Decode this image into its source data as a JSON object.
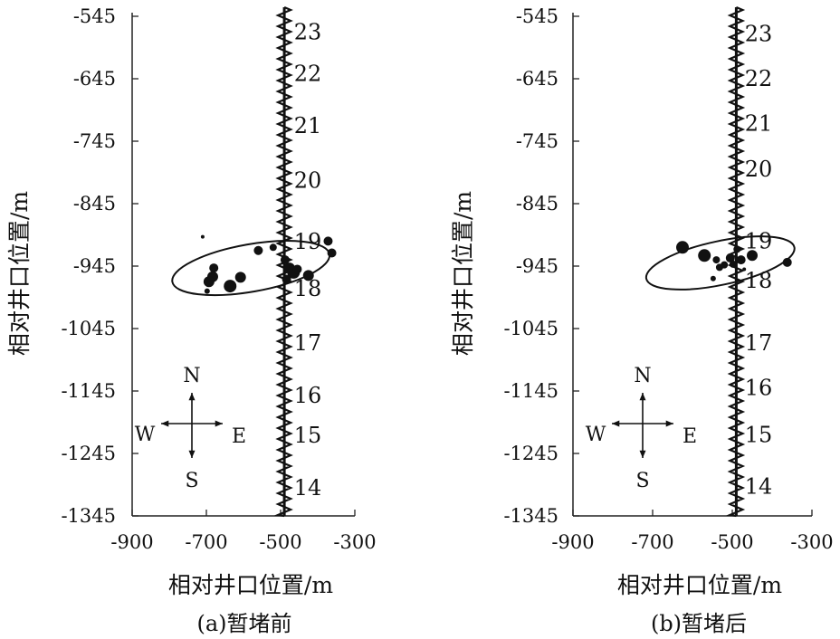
{
  "chart_data": [
    {
      "type": "scatter",
      "caption": "(a)暂堵前",
      "xlabel": "相对井口位置/m",
      "ylabel": "相对井口位置/m",
      "xlim": [
        -900,
        -300
      ],
      "ylim": [
        -1345,
        -545
      ],
      "xticks": [
        -900,
        -700,
        -500,
        -300
      ],
      "yticks": [
        -545,
        -645,
        -745,
        -845,
        -945,
        -1045,
        -1145,
        -1245,
        -1345
      ],
      "well_x": -490,
      "stage_labels": [
        "23",
        "22",
        "21",
        "20",
        "19",
        "18",
        "17",
        "16",
        "15",
        "14"
      ],
      "stage_y": [
        -570,
        -637,
        -720,
        -808,
        -906,
        -981,
        -1068,
        -1152,
        -1216,
        -1300
      ],
      "compass": {
        "n": "N",
        "s": "S",
        "w": "W",
        "e": "E"
      },
      "ellipse": {
        "cx": -580,
        "cy": -948,
        "rx": 215,
        "ry": 38,
        "angle_deg": -10
      },
      "points": [
        {
          "x": -710,
          "y": -898,
          "s": 2
        },
        {
          "x": -680,
          "y": -948,
          "s": 5
        },
        {
          "x": -683,
          "y": -962,
          "s": 6
        },
        {
          "x": -693,
          "y": -970,
          "s": 6
        },
        {
          "x": -698,
          "y": -985,
          "s": 3
        },
        {
          "x": -636,
          "y": -977,
          "s": 7
        },
        {
          "x": -608,
          "y": -963,
          "s": 6
        },
        {
          "x": -560,
          "y": -920,
          "s": 5
        },
        {
          "x": -520,
          "y": -915,
          "s": 4
        },
        {
          "x": -488,
          "y": -935,
          "s": 5
        },
        {
          "x": -476,
          "y": -948,
          "s": 6
        },
        {
          "x": -465,
          "y": -955,
          "s": 7
        },
        {
          "x": -455,
          "y": -950,
          "s": 5
        },
        {
          "x": -484,
          "y": -966,
          "s": 5
        },
        {
          "x": -425,
          "y": -960,
          "s": 6
        },
        {
          "x": -372,
          "y": -905,
          "s": 5
        },
        {
          "x": -362,
          "y": -924,
          "s": 5
        }
      ]
    },
    {
      "type": "scatter",
      "caption": "(b)暂堵后",
      "xlabel": "相对井口位置/m",
      "ylabel": "相对井口位置/m",
      "xlim": [
        -900,
        -300
      ],
      "ylim": [
        -1345,
        -545
      ],
      "xticks": [
        -900,
        -700,
        -500,
        -300
      ],
      "yticks": [
        -545,
        -645,
        -745,
        -845,
        -945,
        -1045,
        -1145,
        -1245,
        -1345
      ],
      "well_x": -490,
      "stage_labels": [
        "23",
        "22",
        "21",
        "20",
        "19",
        "18",
        "17",
        "16",
        "15",
        "14"
      ],
      "stage_y": [
        -573,
        -645,
        -717,
        -790,
        -905,
        -968,
        -1068,
        -1140,
        -1215,
        -1298
      ],
      "compass": {
        "n": "N",
        "s": "S",
        "w": "W",
        "e": "E"
      },
      "ellipse": {
        "cx": -530,
        "cy": -940,
        "rx": 190,
        "ry": 35,
        "angle_deg": -12
      },
      "points": [
        {
          "x": -625,
          "y": -915,
          "s": 7
        },
        {
          "x": -570,
          "y": -928,
          "s": 7
        },
        {
          "x": -540,
          "y": -935,
          "s": 4
        },
        {
          "x": -532,
          "y": -947,
          "s": 4
        },
        {
          "x": -520,
          "y": -943,
          "s": 4
        },
        {
          "x": -548,
          "y": -965,
          "s": 3
        },
        {
          "x": -505,
          "y": -932,
          "s": 5
        },
        {
          "x": -498,
          "y": -942,
          "s": 4
        },
        {
          "x": -488,
          "y": -918,
          "s": 4
        },
        {
          "x": -478,
          "y": -935,
          "s": 5
        },
        {
          "x": -470,
          "y": -950,
          "s": 2
        },
        {
          "x": -450,
          "y": -928,
          "s": 6
        },
        {
          "x": -362,
          "y": -939,
          "s": 5
        }
      ]
    }
  ]
}
